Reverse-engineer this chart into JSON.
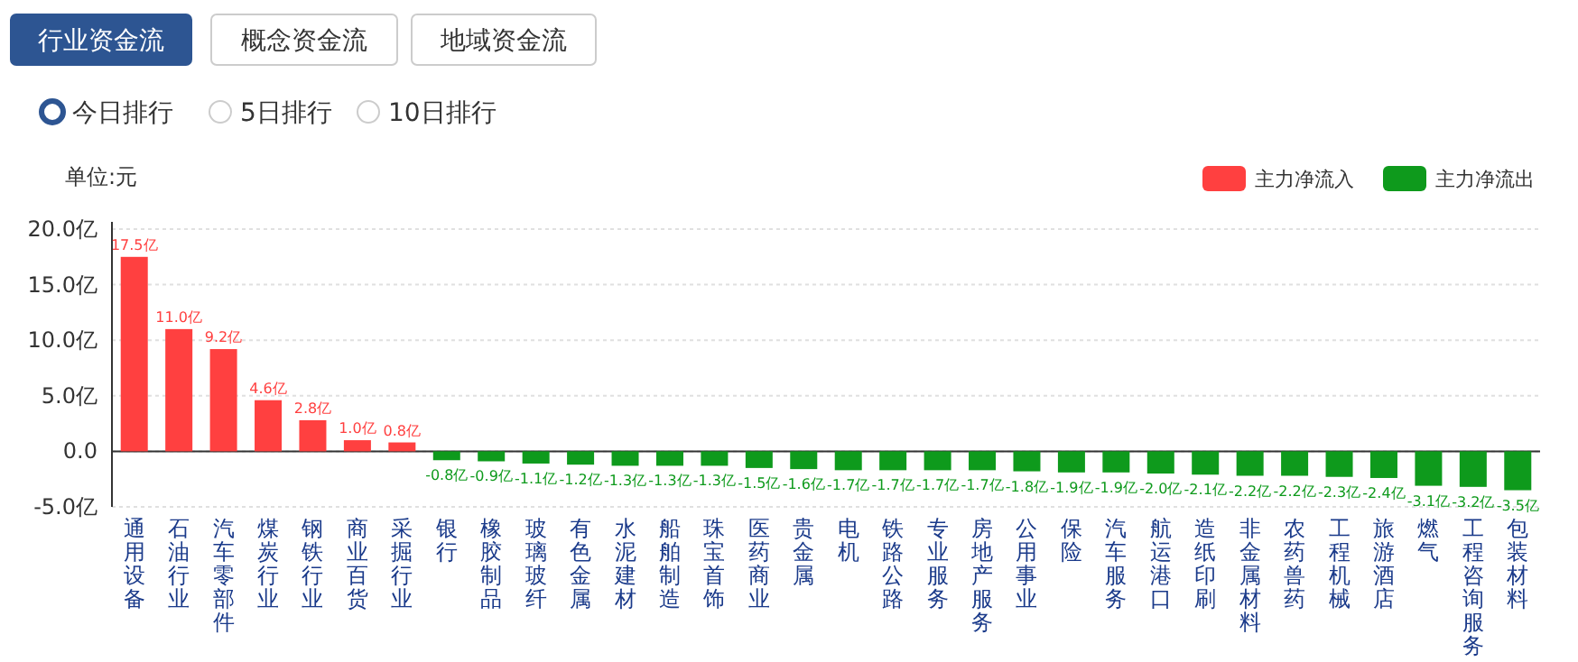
{
  "chart_data": {
    "type": "bar",
    "stacked": true,
    "ylabel": "单位:元",
    "annotations": [
      "行业资金流",
      "概念资金流",
      "地域资金流",
      "今日排行",
      "5日排行",
      "10日排行"
    ],
    "categories": [
      "通用设备",
      "石油行业",
      "汽车零部件",
      "煤炭行业",
      "钢铁行业",
      "商业百货",
      "采掘行业",
      "银行",
      "橡胶制品",
      "玻璃玻纤",
      "有色金属",
      "水泥建材",
      "船舶制造",
      "珠宝首饰",
      "医药商业",
      "贵金属",
      "电机",
      "铁路公路",
      "专业服务",
      "房地产服务",
      "公用事业",
      "保险",
      "汽车服务",
      "航运港口",
      "造纸印刷",
      "非金属材料",
      "农药兽药",
      "工程机械",
      "旅游酒店",
      "燃气",
      "工程咨询服务",
      "包装材料"
    ],
    "series": [
      {
        "name": "主力净流入",
        "color": "#ff4040",
        "values": [
          17.5,
          11.0,
          9.2,
          4.6,
          2.8,
          1.0,
          0.8,
          null,
          null,
          null,
          null,
          null,
          null,
          null,
          null,
          null,
          null,
          null,
          null,
          null,
          null,
          null,
          null,
          null,
          null,
          null,
          null,
          null,
          null,
          null,
          null,
          null
        ],
        "value_labels": [
          "17.5亿",
          "11.0亿",
          "9.2亿",
          "4.6亿",
          "2.8亿",
          "1.0亿",
          "0.8亿",
          null,
          null,
          null,
          null,
          null,
          null,
          null,
          null,
          null,
          null,
          null,
          null,
          null,
          null,
          null,
          null,
          null,
          null,
          null,
          null,
          null,
          null,
          null,
          null,
          null
        ]
      },
      {
        "name": "主力净流出",
        "color": "#0e9a1c",
        "values": [
          null,
          null,
          null,
          null,
          null,
          null,
          null,
          -0.8,
          -0.9,
          -1.1,
          -1.2,
          -1.3,
          -1.3,
          -1.3,
          -1.5,
          -1.6,
          -1.7,
          -1.7,
          -1.7,
          -1.7,
          -1.8,
          -1.9,
          -1.9,
          -2.0,
          -2.1,
          -2.2,
          -2.2,
          -2.3,
          -2.4,
          -3.1,
          -3.2,
          -3.5
        ],
        "value_labels": [
          null,
          null,
          null,
          null,
          null,
          null,
          null,
          "-0.8亿",
          "-0.9亿",
          "-1.1亿",
          "-1.2亿",
          "-1.3亿",
          "-1.3亿",
          "-1.3亿",
          "-1.5亿",
          "-1.6亿",
          "-1.7亿",
          "-1.7亿",
          "-1.7亿",
          "-1.7亿",
          "-1.8亿",
          "-1.9亿",
          "-1.9亿",
          "-2.0亿",
          "-2.1亿",
          "-2.2亿",
          "-2.2亿",
          "-2.3亿",
          "-2.4亿",
          "-3.1亿",
          "-3.2亿",
          "-3.5亿"
        ]
      }
    ],
    "ylim": [
      -5,
      20
    ],
    "yticks": [
      {
        "value": 20,
        "label": "20.0亿"
      },
      {
        "value": 15,
        "label": "15.0亿"
      },
      {
        "value": 10,
        "label": "10.0亿"
      },
      {
        "value": 5,
        "label": "5.0亿"
      },
      {
        "value": 0,
        "label": "0.0"
      },
      {
        "value": -5,
        "label": "-5.0亿"
      }
    ],
    "grid": "y",
    "legend": "top right"
  }
}
